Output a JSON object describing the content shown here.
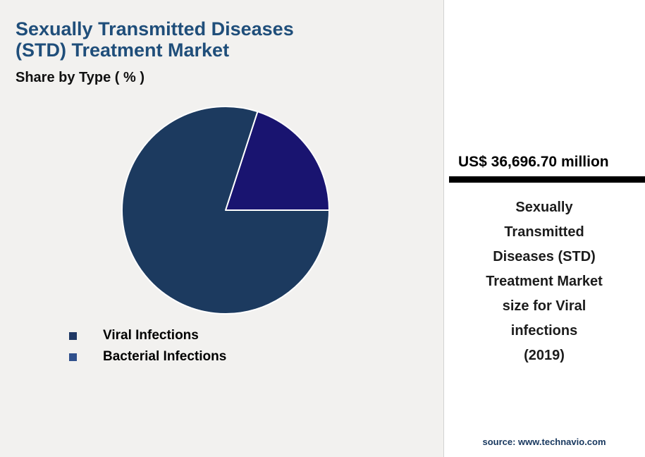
{
  "header": {
    "title_lines": [
      "Sexually Transmitted Diseases",
      "(STD) Treatment Market"
    ],
    "subtitle": "Share by Type ( % )"
  },
  "chart_data": {
    "type": "pie",
    "title": "Sexually Transmitted Diseases (STD) Treatment Market - Share by Type (%)",
    "start_angle_deg": 18,
    "slices": [
      {
        "label": "Bacterial Infections",
        "value": 20,
        "color": "#191470"
      },
      {
        "label": "Viral Infections",
        "value": 80,
        "color": "#1c3a5f"
      }
    ],
    "legend": [
      {
        "label": "Viral Infections",
        "color": "#1f3864"
      },
      {
        "label": "Bacterial Infections",
        "color": "#30508c"
      }
    ],
    "legend_position": "bottom-left",
    "grid": false
  },
  "sidebar": {
    "stat_value": "US$ 36,696.70 million",
    "description_lines": [
      "Sexually",
      "Transmitted",
      "Diseases (STD)",
      "Treatment Market",
      "size for Viral",
      "infections",
      "(2019)"
    ],
    "source": "source: www.technavio.com"
  },
  "colors": {
    "title_text": "#1f4e7a",
    "left_background": "#f2f1ef",
    "panel_background": "#ffffff",
    "stat_bar": "#000000",
    "source_text": "#17375e"
  }
}
